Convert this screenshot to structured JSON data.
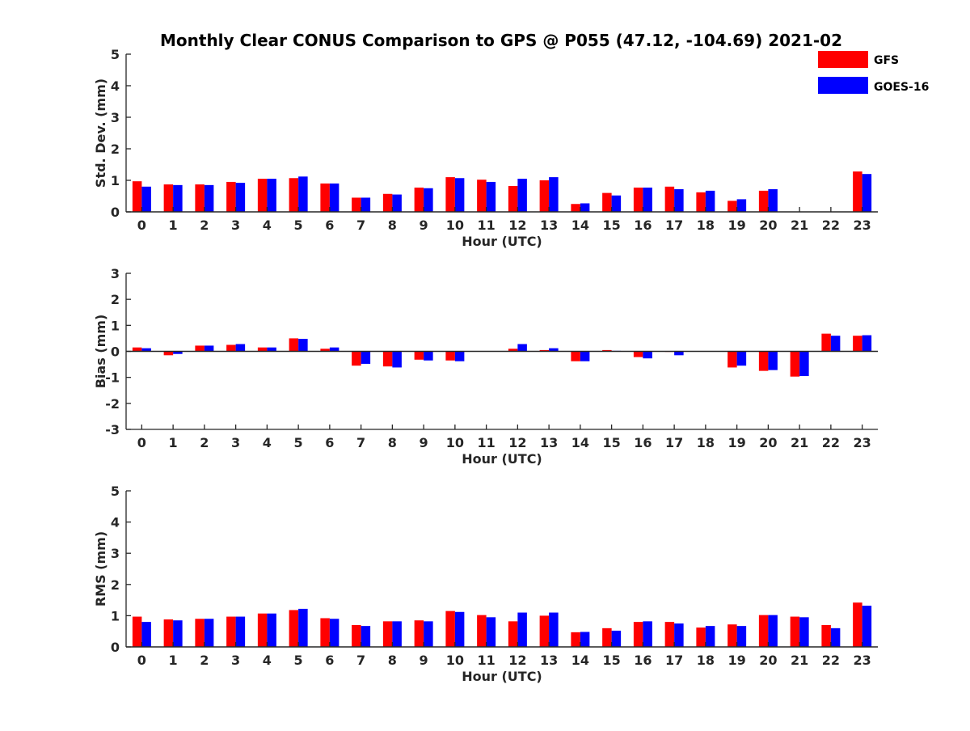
{
  "page": {
    "title": "Monthly Clear CONUS Comparison to GPS @ P055 (47.12, -104.69) 2021-02"
  },
  "legend": {
    "items": [
      {
        "label": "GFS",
        "color": "#ff0000"
      },
      {
        "label": "GOES-16",
        "color": "#0000ff"
      }
    ]
  },
  "chart_data": [
    {
      "type": "bar",
      "ylabel": "Std. Dev. (mm)",
      "xlabel": "Hour (UTC)",
      "ylim": [
        0,
        5
      ],
      "yticks": [
        0,
        1,
        2,
        3,
        4,
        5
      ],
      "categories": [
        "0",
        "1",
        "2",
        "3",
        "4",
        "5",
        "6",
        "7",
        "8",
        "9",
        "10",
        "11",
        "12",
        "13",
        "14",
        "15",
        "16",
        "17",
        "18",
        "19",
        "20",
        "21",
        "22",
        "23"
      ],
      "series": [
        {
          "name": "GFS",
          "color": "#ff0000",
          "values": [
            0.97,
            0.87,
            0.87,
            0.95,
            1.05,
            1.07,
            0.9,
            0.45,
            0.57,
            0.77,
            1.1,
            1.02,
            0.82,
            1.0,
            0.25,
            0.6,
            0.77,
            0.8,
            0.62,
            0.35,
            0.67,
            null,
            null,
            1.28
          ]
        },
        {
          "name": "GOES-16",
          "color": "#0000ff",
          "values": [
            0.8,
            0.85,
            0.85,
            0.92,
            1.05,
            1.12,
            0.9,
            0.45,
            0.55,
            0.75,
            1.07,
            0.95,
            1.05,
            1.1,
            0.27,
            0.52,
            0.77,
            0.72,
            0.67,
            0.4,
            0.72,
            null,
            null,
            1.2
          ]
        }
      ]
    },
    {
      "type": "bar",
      "ylabel": "Bias (mm)",
      "xlabel": "Hour (UTC)",
      "ylim": [
        -3,
        3
      ],
      "yticks": [
        -3,
        -2,
        -1,
        0,
        1,
        2,
        3
      ],
      "categories": [
        "0",
        "1",
        "2",
        "3",
        "4",
        "5",
        "6",
        "7",
        "8",
        "9",
        "10",
        "11",
        "12",
        "13",
        "14",
        "15",
        "16",
        "17",
        "18",
        "19",
        "20",
        "21",
        "22",
        "23"
      ],
      "series": [
        {
          "name": "GFS",
          "color": "#ff0000",
          "values": [
            0.15,
            -0.15,
            0.22,
            0.25,
            0.15,
            0.5,
            0.1,
            -0.55,
            -0.58,
            -0.32,
            -0.35,
            null,
            0.1,
            0.05,
            -0.38,
            0.05,
            -0.22,
            -0.02,
            null,
            -0.62,
            -0.75,
            -0.97,
            0.68,
            0.6
          ]
        },
        {
          "name": "GOES-16",
          "color": "#0000ff",
          "values": [
            0.12,
            -0.1,
            0.22,
            0.28,
            0.15,
            0.48,
            0.15,
            -0.48,
            -0.62,
            -0.35,
            -0.38,
            null,
            0.28,
            0.12,
            -0.38,
            0.02,
            -0.27,
            -0.15,
            null,
            -0.55,
            -0.72,
            -0.95,
            0.6,
            0.62
          ]
        }
      ]
    },
    {
      "type": "bar",
      "ylabel": "RMS (mm)",
      "xlabel": "Hour (UTC)",
      "ylim": [
        0,
        5
      ],
      "yticks": [
        0,
        1,
        2,
        3,
        4,
        5
      ],
      "categories": [
        "0",
        "1",
        "2",
        "3",
        "4",
        "5",
        "6",
        "7",
        "8",
        "9",
        "10",
        "11",
        "12",
        "13",
        "14",
        "15",
        "16",
        "17",
        "18",
        "19",
        "20",
        "21",
        "22",
        "23"
      ],
      "series": [
        {
          "name": "GFS",
          "color": "#ff0000",
          "values": [
            0.97,
            0.88,
            0.9,
            0.97,
            1.07,
            1.18,
            0.92,
            0.7,
            0.82,
            0.85,
            1.15,
            1.02,
            0.82,
            1.0,
            0.47,
            0.6,
            0.8,
            0.8,
            0.62,
            0.72,
            1.02,
            0.97,
            0.7,
            1.42
          ]
        },
        {
          "name": "GOES-16",
          "color": "#0000ff",
          "values": [
            0.8,
            0.85,
            0.9,
            0.97,
            1.07,
            1.22,
            0.9,
            0.67,
            0.82,
            0.82,
            1.12,
            0.95,
            1.1,
            1.1,
            0.48,
            0.52,
            0.82,
            0.75,
            0.67,
            0.67,
            1.02,
            0.95,
            0.6,
            1.32
          ]
        }
      ]
    }
  ]
}
